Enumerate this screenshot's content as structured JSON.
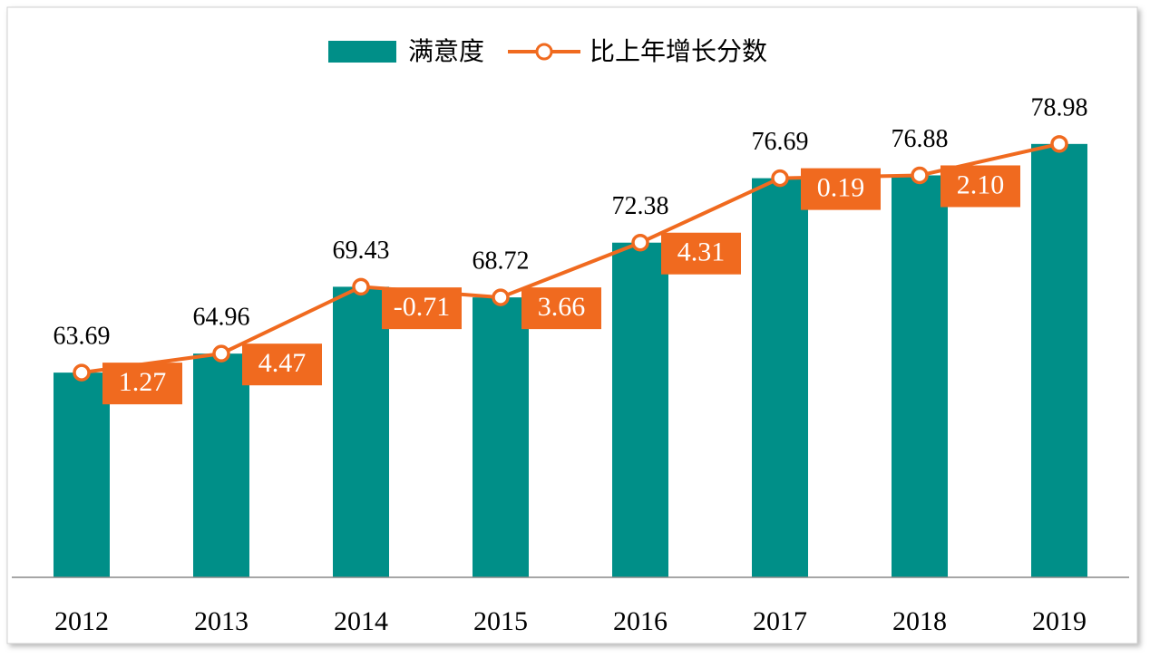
{
  "chart_data": {
    "type": "bar_line",
    "categories": [
      "2012",
      "2013",
      "2014",
      "2015",
      "2016",
      "2017",
      "2018",
      "2019"
    ],
    "series": [
      {
        "name": "满意度",
        "type": "bar",
        "color": "#008f88",
        "values": [
          63.69,
          64.96,
          69.43,
          68.72,
          72.38,
          76.69,
          76.88,
          78.98
        ]
      },
      {
        "name": "比上年增长分数",
        "type": "line",
        "color": "#f06a1f",
        "values": [
          63.69,
          64.96,
          69.43,
          68.72,
          72.38,
          76.69,
          76.88,
          78.98
        ]
      }
    ],
    "growth": {
      "values": [
        1.27,
        4.47,
        -0.71,
        3.66,
        4.31,
        0.19,
        2.1
      ],
      "value_labels": [
        "1.27",
        "4.47",
        "-0.71",
        "3.66",
        "4.31",
        "0.19",
        "2.10"
      ],
      "color": "#f06a1f"
    },
    "ylim": [
      50,
      82
    ],
    "legend": "top"
  }
}
